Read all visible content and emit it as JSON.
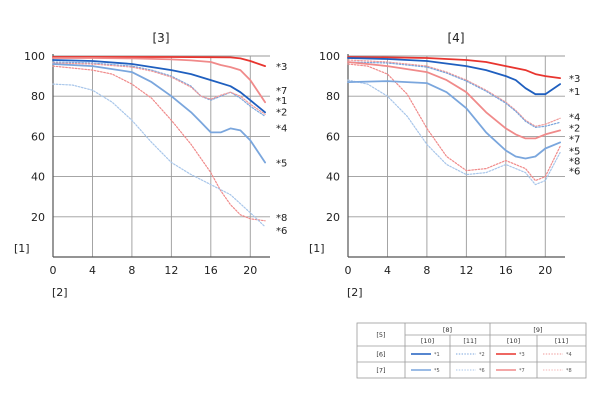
{
  "chart_data": [
    {
      "type": "line",
      "title": "[3]",
      "ylabel_tag": "[1]",
      "xlabel_tag": "[2]",
      "xlim": [
        0,
        22
      ],
      "ylim": [
        0,
        100
      ],
      "xticks": [
        "0",
        "4",
        "8",
        "12",
        "16",
        "20"
      ],
      "yticks": [
        "20",
        "40",
        "60",
        "80",
        "100"
      ],
      "grid": true,
      "series": [
        {
          "name": "*3",
          "color": "#e8352f",
          "style": "solid",
          "x": [
            0,
            4,
            8,
            12,
            16,
            18,
            19,
            20,
            21.5
          ],
          "y": [
            99.5,
            99.5,
            99.5,
            99.5,
            99.4,
            99.3,
            98.8,
            97.5,
            95
          ]
        },
        {
          "name": "*7",
          "color": "#f08a8a",
          "style": "solid",
          "x": [
            0,
            4,
            8,
            12,
            14,
            16,
            17,
            18,
            19,
            20,
            21.5
          ],
          "y": [
            99,
            99,
            98.8,
            98.3,
            97.8,
            97,
            95.5,
            94.5,
            93,
            88,
            77
          ]
        },
        {
          "name": "*1",
          "color": "#1f5fbf",
          "style": "solid",
          "x": [
            0,
            4,
            8,
            12,
            14,
            16,
            18,
            19,
            20,
            21.5
          ],
          "y": [
            98,
            97.5,
            96,
            93,
            91,
            88,
            85,
            82,
            78,
            72
          ]
        },
        {
          "name": "*2",
          "color": "#7aa6dd",
          "style": "dotted",
          "x": [
            0,
            4,
            8,
            10,
            12,
            14,
            15,
            16,
            17,
            18,
            19,
            20,
            21.5
          ],
          "y": [
            97,
            96.5,
            95,
            93,
            90,
            85,
            80,
            78,
            80,
            82,
            79,
            75,
            70
          ]
        },
        {
          "name": "*4",
          "color": "#f09a9a",
          "style": "dotted",
          "x": [
            0,
            4,
            8,
            10,
            12,
            14,
            15,
            16,
            17,
            18,
            19,
            20,
            21.5
          ],
          "y": [
            96.5,
            96,
            94.5,
            92.5,
            89.5,
            84.5,
            80,
            78.5,
            80.5,
            82,
            80,
            76,
            71
          ]
        },
        {
          "name": "*5",
          "color": "#7aa6dd",
          "style": "solid",
          "x": [
            0,
            4,
            8,
            10,
            12,
            14,
            15,
            16,
            17,
            18,
            19,
            20,
            21.5
          ],
          "y": [
            96,
            95,
            92,
            87,
            80,
            72,
            67,
            62,
            62,
            64,
            63,
            58,
            47
          ]
        },
        {
          "name": "*8",
          "color": "#f08a8a",
          "style": "dotted",
          "x": [
            0,
            4,
            6,
            8,
            10,
            12,
            14,
            16,
            17,
            18,
            19,
            20,
            21.5
          ],
          "y": [
            95,
            93,
            91,
            86,
            79,
            68,
            56,
            42,
            33,
            26,
            21,
            19,
            18
          ]
        },
        {
          "name": "*6",
          "color": "#a8c6ea",
          "style": "dotted",
          "x": [
            0,
            2,
            4,
            6,
            8,
            10,
            12,
            14,
            16,
            18,
            20,
            21.5
          ],
          "y": [
            86,
            85.5,
            83,
            77,
            68,
            57,
            47,
            41,
            36,
            31,
            22,
            15
          ]
        }
      ],
      "labels": [
        {
          "text": "*3",
          "y": 95
        },
        {
          "text": "*7",
          "y": 83
        },
        {
          "text": "*1",
          "y": 78
        },
        {
          "text": "*2",
          "y": 72.5
        },
        {
          "text": "*4",
          "y": 64.5
        },
        {
          "text": "*5",
          "y": 47
        },
        {
          "text": "*8",
          "y": 20
        },
        {
          "text": "*6",
          "y": 13.5
        }
      ]
    },
    {
      "type": "line",
      "title": "[4]",
      "ylabel_tag": "[1]",
      "xlabel_tag": "[2]",
      "xlim": [
        0,
        22
      ],
      "ylim": [
        0,
        100
      ],
      "xticks": [
        "0",
        "4",
        "8",
        "12",
        "16",
        "20"
      ],
      "yticks": [
        "20",
        "40",
        "60",
        "80",
        "100"
      ],
      "grid": true,
      "series": [
        {
          "name": "*3",
          "color": "#e8352f",
          "style": "solid",
          "x": [
            0,
            4,
            8,
            12,
            14,
            16,
            18,
            19,
            20,
            21.5
          ],
          "y": [
            99.5,
            99.3,
            99,
            98,
            97,
            95,
            93,
            91,
            90,
            89
          ]
        },
        {
          "name": "*1",
          "color": "#1f5fbf",
          "style": "solid",
          "x": [
            0,
            4,
            8,
            12,
            14,
            16,
            17,
            18,
            19,
            20,
            21.5
          ],
          "y": [
            99,
            98.5,
            97.5,
            95,
            93,
            90,
            88,
            84,
            81,
            81,
            86
          ]
        },
        {
          "name": "*4",
          "color": "#f09a9a",
          "style": "dotted",
          "x": [
            0,
            4,
            8,
            10,
            12,
            14,
            16,
            17,
            18,
            19,
            20,
            21.5
          ],
          "y": [
            98,
            97,
            95,
            92,
            88,
            83,
            77,
            73,
            68,
            65,
            66,
            69
          ]
        },
        {
          "name": "*2",
          "color": "#7aa6dd",
          "style": "dotted",
          "x": [
            0,
            4,
            8,
            10,
            12,
            14,
            16,
            17,
            18,
            19,
            20,
            21.5
          ],
          "y": [
            97,
            96.5,
            94.5,
            91.5,
            87.5,
            82.5,
            76.5,
            72.5,
            67.5,
            64.5,
            65,
            67
          ]
        },
        {
          "name": "*7",
          "color": "#f08a8a",
          "style": "solid",
          "x": [
            0,
            4,
            8,
            10,
            12,
            14,
            16,
            17,
            18,
            19,
            20,
            21.5
          ],
          "y": [
            97,
            95,
            92,
            88,
            82,
            72,
            64,
            61,
            59,
            59,
            61,
            63
          ]
        },
        {
          "name": "*5",
          "color": "#7aa6dd",
          "style": "solid",
          "x": [
            0,
            4,
            8,
            10,
            12,
            14,
            16,
            17,
            18,
            19,
            20,
            21.5
          ],
          "y": [
            87,
            87.5,
            86.5,
            82,
            74,
            62,
            53,
            50,
            49,
            50,
            54,
            57
          ]
        },
        {
          "name": "*8",
          "color": "#f08a8a",
          "style": "dotted",
          "x": [
            0,
            2,
            4,
            6,
            8,
            10,
            12,
            14,
            16,
            18,
            19,
            20,
            21.5
          ],
          "y": [
            96,
            95,
            91,
            81,
            64,
            50,
            43,
            44,
            48,
            44,
            38,
            40,
            55
          ]
        },
        {
          "name": "*6",
          "color": "#a8c6ea",
          "style": "dotted",
          "x": [
            0,
            2,
            4,
            6,
            8,
            10,
            12,
            14,
            16,
            18,
            19,
            20,
            21.5
          ],
          "y": [
            88,
            86,
            80,
            70,
            56,
            46,
            41,
            42,
            46,
            42,
            36,
            38,
            52
          ]
        }
      ],
      "labels": [
        {
          "text": "*3",
          "y": 89
        },
        {
          "text": "*1",
          "y": 82.5
        },
        {
          "text": "*4",
          "y": 70
        },
        {
          "text": "*2",
          "y": 64.5
        },
        {
          "text": "*7",
          "y": 59
        },
        {
          "text": "*5",
          "y": 53
        },
        {
          "text": "*8",
          "y": 48
        },
        {
          "text": "*6",
          "y": 43
        }
      ]
    }
  ],
  "legend": {
    "corner": "[5]",
    "groups": [
      "[8]",
      "[9]"
    ],
    "subheads": [
      "[10]",
      "[11]",
      "[10]",
      "[11]"
    ],
    "rows": [
      {
        "label": "[6]",
        "cells": [
          {
            "text": "*1",
            "color": "#1f5fbf",
            "style": "solid"
          },
          {
            "text": "*2",
            "color": "#7aa6dd",
            "style": "dotted"
          },
          {
            "text": "*3",
            "color": "#e8352f",
            "style": "solid"
          },
          {
            "text": "*4",
            "color": "#f09a9a",
            "style": "dotted"
          }
        ]
      },
      {
        "label": "[7]",
        "cells": [
          {
            "text": "*5",
            "color": "#7aa6dd",
            "style": "solid"
          },
          {
            "text": "*6",
            "color": "#a8c6ea",
            "style": "dotted"
          },
          {
            "text": "*7",
            "color": "#f08a8a",
            "style": "solid"
          },
          {
            "text": "*8",
            "color": "#f4b6b6",
            "style": "dotted"
          }
        ]
      }
    ]
  }
}
